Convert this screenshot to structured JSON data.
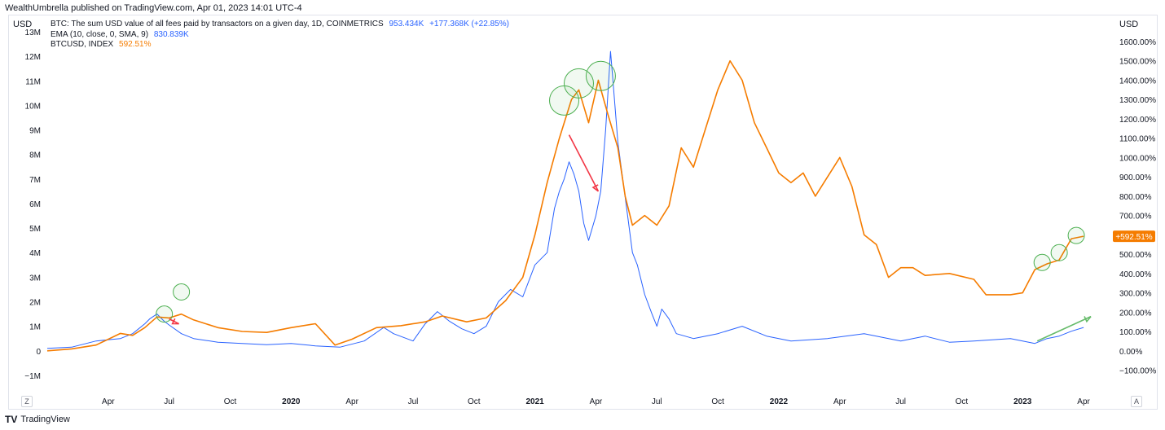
{
  "header": {
    "text": "WealthUmbrella published on TradingView.com, Apr 01, 2023 14:01 UTC-4"
  },
  "footer": {
    "brand": "TradingView",
    "logo_icon": "tradingview-logo-icon"
  },
  "chart_data": {
    "type": "line",
    "unit_left": "USD",
    "unit_right": "USD",
    "legend": [
      {
        "label": "BTC: The sum USD value of all fees paid by transactors on a given day, 1D, COINMETRICS",
        "value": "953.434K",
        "change": "+177.368K (+22.85%)",
        "color": "#2962ff"
      },
      {
        "label": "EMA (10, close, 0, SMA, 9)",
        "value": "830.839K",
        "color": "#2962ff"
      },
      {
        "label": "BTCUSD, INDEX",
        "value": "592.51%",
        "color": "#f57c00"
      }
    ],
    "y_left": {
      "ticks": [
        "13M",
        "12M",
        "11M",
        "10M",
        "9M",
        "8M",
        "7M",
        "6M",
        "5M",
        "4M",
        "3M",
        "2M",
        "1M",
        "0",
        "−1M"
      ],
      "values": [
        13,
        12,
        11,
        10,
        9,
        8,
        7,
        6,
        5,
        4,
        3,
        2,
        1,
        0,
        -1
      ],
      "ylim": [
        -1.7,
        13.3
      ]
    },
    "y_right": {
      "ticks": [
        "1600.00%",
        "1500.00%",
        "1400.00%",
        "1300.00%",
        "1200.00%",
        "1100.00%",
        "1000.00%",
        "900.00%",
        "800.00%",
        "700.00%",
        "600.00%",
        "500.00%",
        "400.00%",
        "300.00%",
        "200.00%",
        "100.00%",
        "0.00%",
        "−100.00%"
      ],
      "values": [
        1600,
        1500,
        1400,
        1300,
        1200,
        1100,
        1000,
        900,
        800,
        700,
        600,
        500,
        400,
        300,
        200,
        100,
        0,
        -100
      ]
    },
    "last_value_badge": "+592.51%",
    "x_ticks": [
      {
        "label": "Apr",
        "t": 2019.25,
        "bold": false
      },
      {
        "label": "Jul",
        "t": 2019.5,
        "bold": false
      },
      {
        "label": "Oct",
        "t": 2019.75,
        "bold": false
      },
      {
        "label": "2020",
        "t": 2020.0,
        "bold": true
      },
      {
        "label": "Apr",
        "t": 2020.25,
        "bold": false
      },
      {
        "label": "Jul",
        "t": 2020.5,
        "bold": false
      },
      {
        "label": "Oct",
        "t": 2020.75,
        "bold": false
      },
      {
        "label": "2021",
        "t": 2021.0,
        "bold": true
      },
      {
        "label": "Apr",
        "t": 2021.25,
        "bold": false
      },
      {
        "label": "Jul",
        "t": 2021.5,
        "bold": false
      },
      {
        "label": "Oct",
        "t": 2021.75,
        "bold": false
      },
      {
        "label": "2022",
        "t": 2022.0,
        "bold": true
      },
      {
        "label": "Apr",
        "t": 2022.25,
        "bold": false
      },
      {
        "label": "Jul",
        "t": 2022.5,
        "bold": false
      },
      {
        "label": "Oct",
        "t": 2022.75,
        "bold": false
      },
      {
        "label": "2023",
        "t": 2023.0,
        "bold": true
      },
      {
        "label": "Apr",
        "t": 2023.25,
        "bold": false
      }
    ],
    "corner_left": "Z",
    "corner_right": "A",
    "series": [
      {
        "name": "BTC fees (USD)",
        "axis": "left",
        "color": "#2962ff",
        "points": [
          [
            2019.0,
            0.1
          ],
          [
            2019.1,
            0.15
          ],
          [
            2019.2,
            0.4
          ],
          [
            2019.3,
            0.5
          ],
          [
            2019.35,
            0.7
          ],
          [
            2019.4,
            1.1
          ],
          [
            2019.42,
            1.3
          ],
          [
            2019.45,
            1.5
          ],
          [
            2019.48,
            1.2
          ],
          [
            2019.5,
            1.05
          ],
          [
            2019.55,
            0.7
          ],
          [
            2019.6,
            0.5
          ],
          [
            2019.7,
            0.35
          ],
          [
            2019.8,
            0.3
          ],
          [
            2019.9,
            0.25
          ],
          [
            2020.0,
            0.3
          ],
          [
            2020.1,
            0.2
          ],
          [
            2020.2,
            0.15
          ],
          [
            2020.3,
            0.4
          ],
          [
            2020.38,
            0.95
          ],
          [
            2020.42,
            0.7
          ],
          [
            2020.5,
            0.4
          ],
          [
            2020.55,
            1.1
          ],
          [
            2020.6,
            1.6
          ],
          [
            2020.65,
            1.2
          ],
          [
            2020.7,
            0.9
          ],
          [
            2020.75,
            0.7
          ],
          [
            2020.8,
            1.0
          ],
          [
            2020.85,
            2.0
          ],
          [
            2020.9,
            2.5
          ],
          [
            2020.95,
            2.2
          ],
          [
            2021.0,
            3.5
          ],
          [
            2021.05,
            4.0
          ],
          [
            2021.08,
            5.8
          ],
          [
            2021.1,
            6.5
          ],
          [
            2021.12,
            7.0
          ],
          [
            2021.14,
            7.7
          ],
          [
            2021.16,
            7.2
          ],
          [
            2021.18,
            6.5
          ],
          [
            2021.2,
            5.2
          ],
          [
            2021.22,
            4.5
          ],
          [
            2021.25,
            5.5
          ],
          [
            2021.27,
            6.5
          ],
          [
            2021.29,
            9.0
          ],
          [
            2021.31,
            12.2
          ],
          [
            2021.32,
            11.0
          ],
          [
            2021.34,
            8.5
          ],
          [
            2021.36,
            7.0
          ],
          [
            2021.38,
            5.5
          ],
          [
            2021.4,
            4.0
          ],
          [
            2021.42,
            3.5
          ],
          [
            2021.45,
            2.3
          ],
          [
            2021.48,
            1.5
          ],
          [
            2021.5,
            1.0
          ],
          [
            2021.52,
            1.7
          ],
          [
            2021.55,
            1.3
          ],
          [
            2021.58,
            0.7
          ],
          [
            2021.65,
            0.5
          ],
          [
            2021.75,
            0.7
          ],
          [
            2021.85,
            1.0
          ],
          [
            2021.95,
            0.6
          ],
          [
            2022.05,
            0.4
          ],
          [
            2022.2,
            0.5
          ],
          [
            2022.35,
            0.7
          ],
          [
            2022.5,
            0.4
          ],
          [
            2022.6,
            0.6
          ],
          [
            2022.7,
            0.35
          ],
          [
            2022.8,
            0.4
          ],
          [
            2022.95,
            0.5
          ],
          [
            2023.05,
            0.3
          ],
          [
            2023.1,
            0.5
          ],
          [
            2023.15,
            0.6
          ],
          [
            2023.2,
            0.8
          ],
          [
            2023.25,
            0.95
          ]
        ]
      },
      {
        "name": "BTCUSD, INDEX",
        "axis": "right",
        "color": "#f57c00",
        "points": [
          [
            2019.0,
            0
          ],
          [
            2019.1,
            10
          ],
          [
            2019.2,
            30
          ],
          [
            2019.3,
            90
          ],
          [
            2019.35,
            80
          ],
          [
            2019.4,
            120
          ],
          [
            2019.45,
            175
          ],
          [
            2019.5,
            170
          ],
          [
            2019.55,
            190
          ],
          [
            2019.6,
            160
          ],
          [
            2019.7,
            120
          ],
          [
            2019.8,
            100
          ],
          [
            2019.9,
            95
          ],
          [
            2020.0,
            120
          ],
          [
            2020.1,
            140
          ],
          [
            2020.18,
            30
          ],
          [
            2020.25,
            60
          ],
          [
            2020.35,
            120
          ],
          [
            2020.45,
            130
          ],
          [
            2020.55,
            150
          ],
          [
            2020.62,
            180
          ],
          [
            2020.72,
            150
          ],
          [
            2020.8,
            170
          ],
          [
            2020.88,
            260
          ],
          [
            2020.95,
            380
          ],
          [
            2021.0,
            600
          ],
          [
            2021.05,
            870
          ],
          [
            2021.1,
            1100
          ],
          [
            2021.15,
            1300
          ],
          [
            2021.18,
            1350
          ],
          [
            2021.22,
            1180
          ],
          [
            2021.26,
            1400
          ],
          [
            2021.3,
            1220
          ],
          [
            2021.34,
            1050
          ],
          [
            2021.37,
            800
          ],
          [
            2021.4,
            650
          ],
          [
            2021.45,
            700
          ],
          [
            2021.5,
            650
          ],
          [
            2021.55,
            750
          ],
          [
            2021.6,
            1050
          ],
          [
            2021.65,
            950
          ],
          [
            2021.7,
            1150
          ],
          [
            2021.75,
            1350
          ],
          [
            2021.8,
            1500
          ],
          [
            2021.85,
            1400
          ],
          [
            2021.9,
            1180
          ],
          [
            2021.95,
            1050
          ],
          [
            2022.0,
            920
          ],
          [
            2022.05,
            870
          ],
          [
            2022.1,
            920
          ],
          [
            2022.15,
            800
          ],
          [
            2022.25,
            1000
          ],
          [
            2022.3,
            850
          ],
          [
            2022.35,
            600
          ],
          [
            2022.4,
            550
          ],
          [
            2022.45,
            380
          ],
          [
            2022.5,
            430
          ],
          [
            2022.55,
            430
          ],
          [
            2022.6,
            390
          ],
          [
            2022.7,
            400
          ],
          [
            2022.8,
            370
          ],
          [
            2022.85,
            290
          ],
          [
            2022.95,
            290
          ],
          [
            2023.0,
            300
          ],
          [
            2023.05,
            420
          ],
          [
            2023.1,
            450
          ],
          [
            2023.15,
            470
          ],
          [
            2023.2,
            580
          ],
          [
            2023.25,
            592.51
          ]
        ]
      }
    ],
    "annotations": {
      "green_circles": [
        [
          2019.48,
          1.5
        ],
        [
          2019.55,
          2.4
        ],
        [
          2021.12,
          10.2
        ],
        [
          2021.18,
          10.9
        ],
        [
          2021.27,
          11.2
        ],
        [
          2023.08,
          3.6
        ],
        [
          2023.15,
          4.0
        ],
        [
          2023.22,
          4.7
        ]
      ],
      "red_arrows": [
        [
          [
            2019.5,
            1.3
          ],
          [
            2019.54,
            1.1
          ]
        ],
        [
          [
            2021.14,
            8.8
          ],
          [
            2021.26,
            6.5
          ]
        ]
      ],
      "green_arrow": [
        [
          2023.06,
          0.4
        ],
        [
          2023.28,
          1.4
        ]
      ]
    }
  }
}
